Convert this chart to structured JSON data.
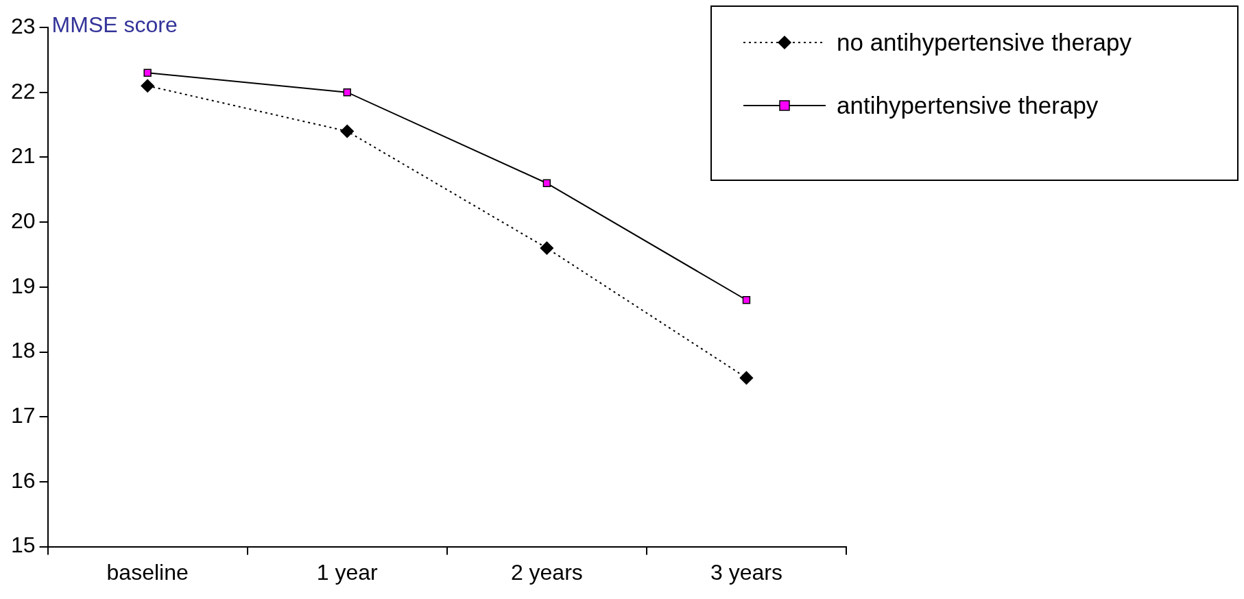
{
  "chart_data": {
    "type": "line",
    "ylabel": "MMSE score",
    "categories": [
      "baseline",
      "1 year",
      "2 years",
      "3 years"
    ],
    "series": [
      {
        "name": "no antihypertensive therapy",
        "color": "#000000",
        "values": [
          22.1,
          21.4,
          19.6,
          17.6
        ],
        "marker": "diamond",
        "line_style": "dotted"
      },
      {
        "name": "antihypertensive therapy",
        "color": "#ff00ff",
        "values": [
          22.3,
          22.0,
          20.6,
          18.8
        ],
        "marker": "square",
        "line_style": "solid"
      }
    ],
    "ylim": [
      15,
      23
    ],
    "yticks": [
      15,
      16,
      17,
      18,
      19,
      20,
      21,
      22,
      23
    ],
    "grid": false,
    "legend": "top right"
  }
}
